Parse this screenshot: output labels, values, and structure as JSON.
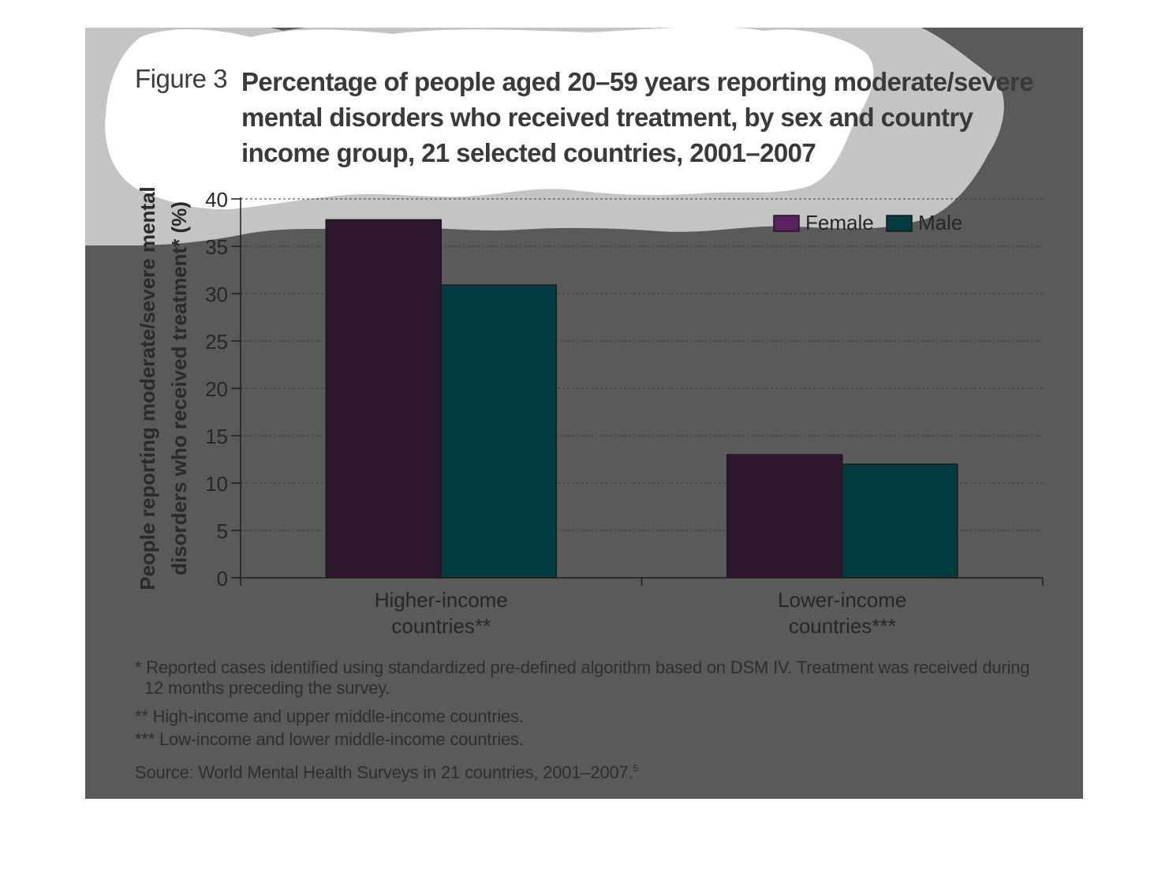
{
  "figure": {
    "label": "Figure 3",
    "title": "Percentage of people aged 20–59 years reporting moderate/severe mental disorders who received treatment, by sex and country income group, 21 selected countries, 2001–2007"
  },
  "chart_data": {
    "type": "bar",
    "categories": [
      "Higher-income countries**",
      "Lower-income countries***"
    ],
    "category_lines": [
      [
        "Higher-income",
        "countries**"
      ],
      [
        "Lower-income",
        "countries***"
      ]
    ],
    "series": [
      {
        "name": "Female",
        "values": [
          37.8,
          13.0
        ],
        "color": "#2e1530"
      },
      {
        "name": "Male",
        "values": [
          30.9,
          12.0
        ],
        "color": "#023c40"
      }
    ],
    "legend_colors": {
      "Female": "#5a2060",
      "Male": "#023c40"
    },
    "ylabel_lines": [
      "People reporting moderate/severe mental",
      "disorders who received treatment* (%)"
    ],
    "ylim": [
      0,
      40
    ],
    "yticks": [
      0,
      5,
      10,
      15,
      20,
      25,
      30,
      35,
      40
    ],
    "grid": true,
    "legend_position": "top-right"
  },
  "notes": {
    "footnote1_line1": "* Reported cases identified using standardized pre-defined algorithm based on DSM IV. Treatment was received during",
    "footnote1_line2": "12 months preceding the survey.",
    "footnote2": "** High-income and upper middle-income countries.",
    "footnote3": "*** Low-income and lower middle-income countries.",
    "source": "Source: World Mental Health Surveys in 21 countries, 2001–2007.",
    "source_ref": "5"
  },
  "colors": {
    "panel_background": "#5a5a5a",
    "cloud_outer": "#c4c4c4",
    "cloud_inner": "#ffffff"
  }
}
